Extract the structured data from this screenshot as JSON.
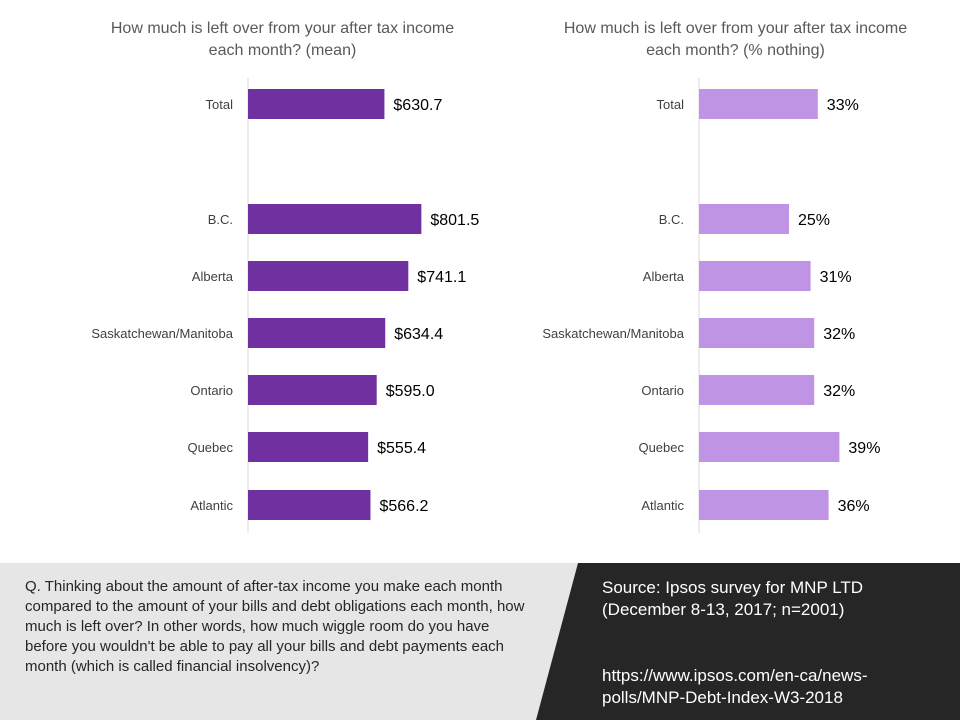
{
  "chart_data": [
    {
      "type": "bar",
      "orientation": "horizontal",
      "title": "How much is left over from your after tax income each month? (mean)",
      "categories": [
        "Total",
        "B.C.",
        "Alberta",
        "Saskatchewan/Manitoba",
        "Ontario",
        "Quebec",
        "Atlantic"
      ],
      "values": [
        630.7,
        801.5,
        741.1,
        634.4,
        595.0,
        555.4,
        566.2
      ],
      "value_labels": [
        "$630.7",
        "$801.5",
        "$741.1",
        "$634.4",
        "$595.0",
        "$555.4",
        "$566.2"
      ],
      "xlim": [
        0,
        1000
      ],
      "color": "#7030A0",
      "grid": false
    },
    {
      "type": "bar",
      "orientation": "horizontal",
      "title": "How much is left over from your after tax income each month? (% nothing)",
      "categories": [
        "Total",
        "B.C.",
        "Alberta",
        "Saskatchewan/Manitoba",
        "Ontario",
        "Quebec",
        "Atlantic"
      ],
      "values": [
        33,
        25,
        31,
        32,
        32,
        39,
        36
      ],
      "value_labels": [
        "33%",
        "25%",
        "31%",
        "32%",
        "32%",
        "39%",
        "36%"
      ],
      "xlim": [
        0,
        100
      ],
      "color": "#BF94E4",
      "grid": false
    }
  ],
  "footer": {
    "question": "Q. Thinking about the amount of after-tax income you make each month compared to the amount of your bills and debt obligations each month, how much is left over? In other words, how much wiggle room do you have before you wouldn't be able to pay all your bills and debt payments each month (which is called financial insolvency)?",
    "source": "Source: Ipsos survey for MNP LTD (December 8-13, 2017; n=2001)",
    "url_part1": "https://www.ipsos.com/en-ca/news-",
    "url_part2": "polls/MNP-Debt-Index-W3-2018",
    "left_bg": "#E7E6E6",
    "right_bg": "#262626"
  }
}
